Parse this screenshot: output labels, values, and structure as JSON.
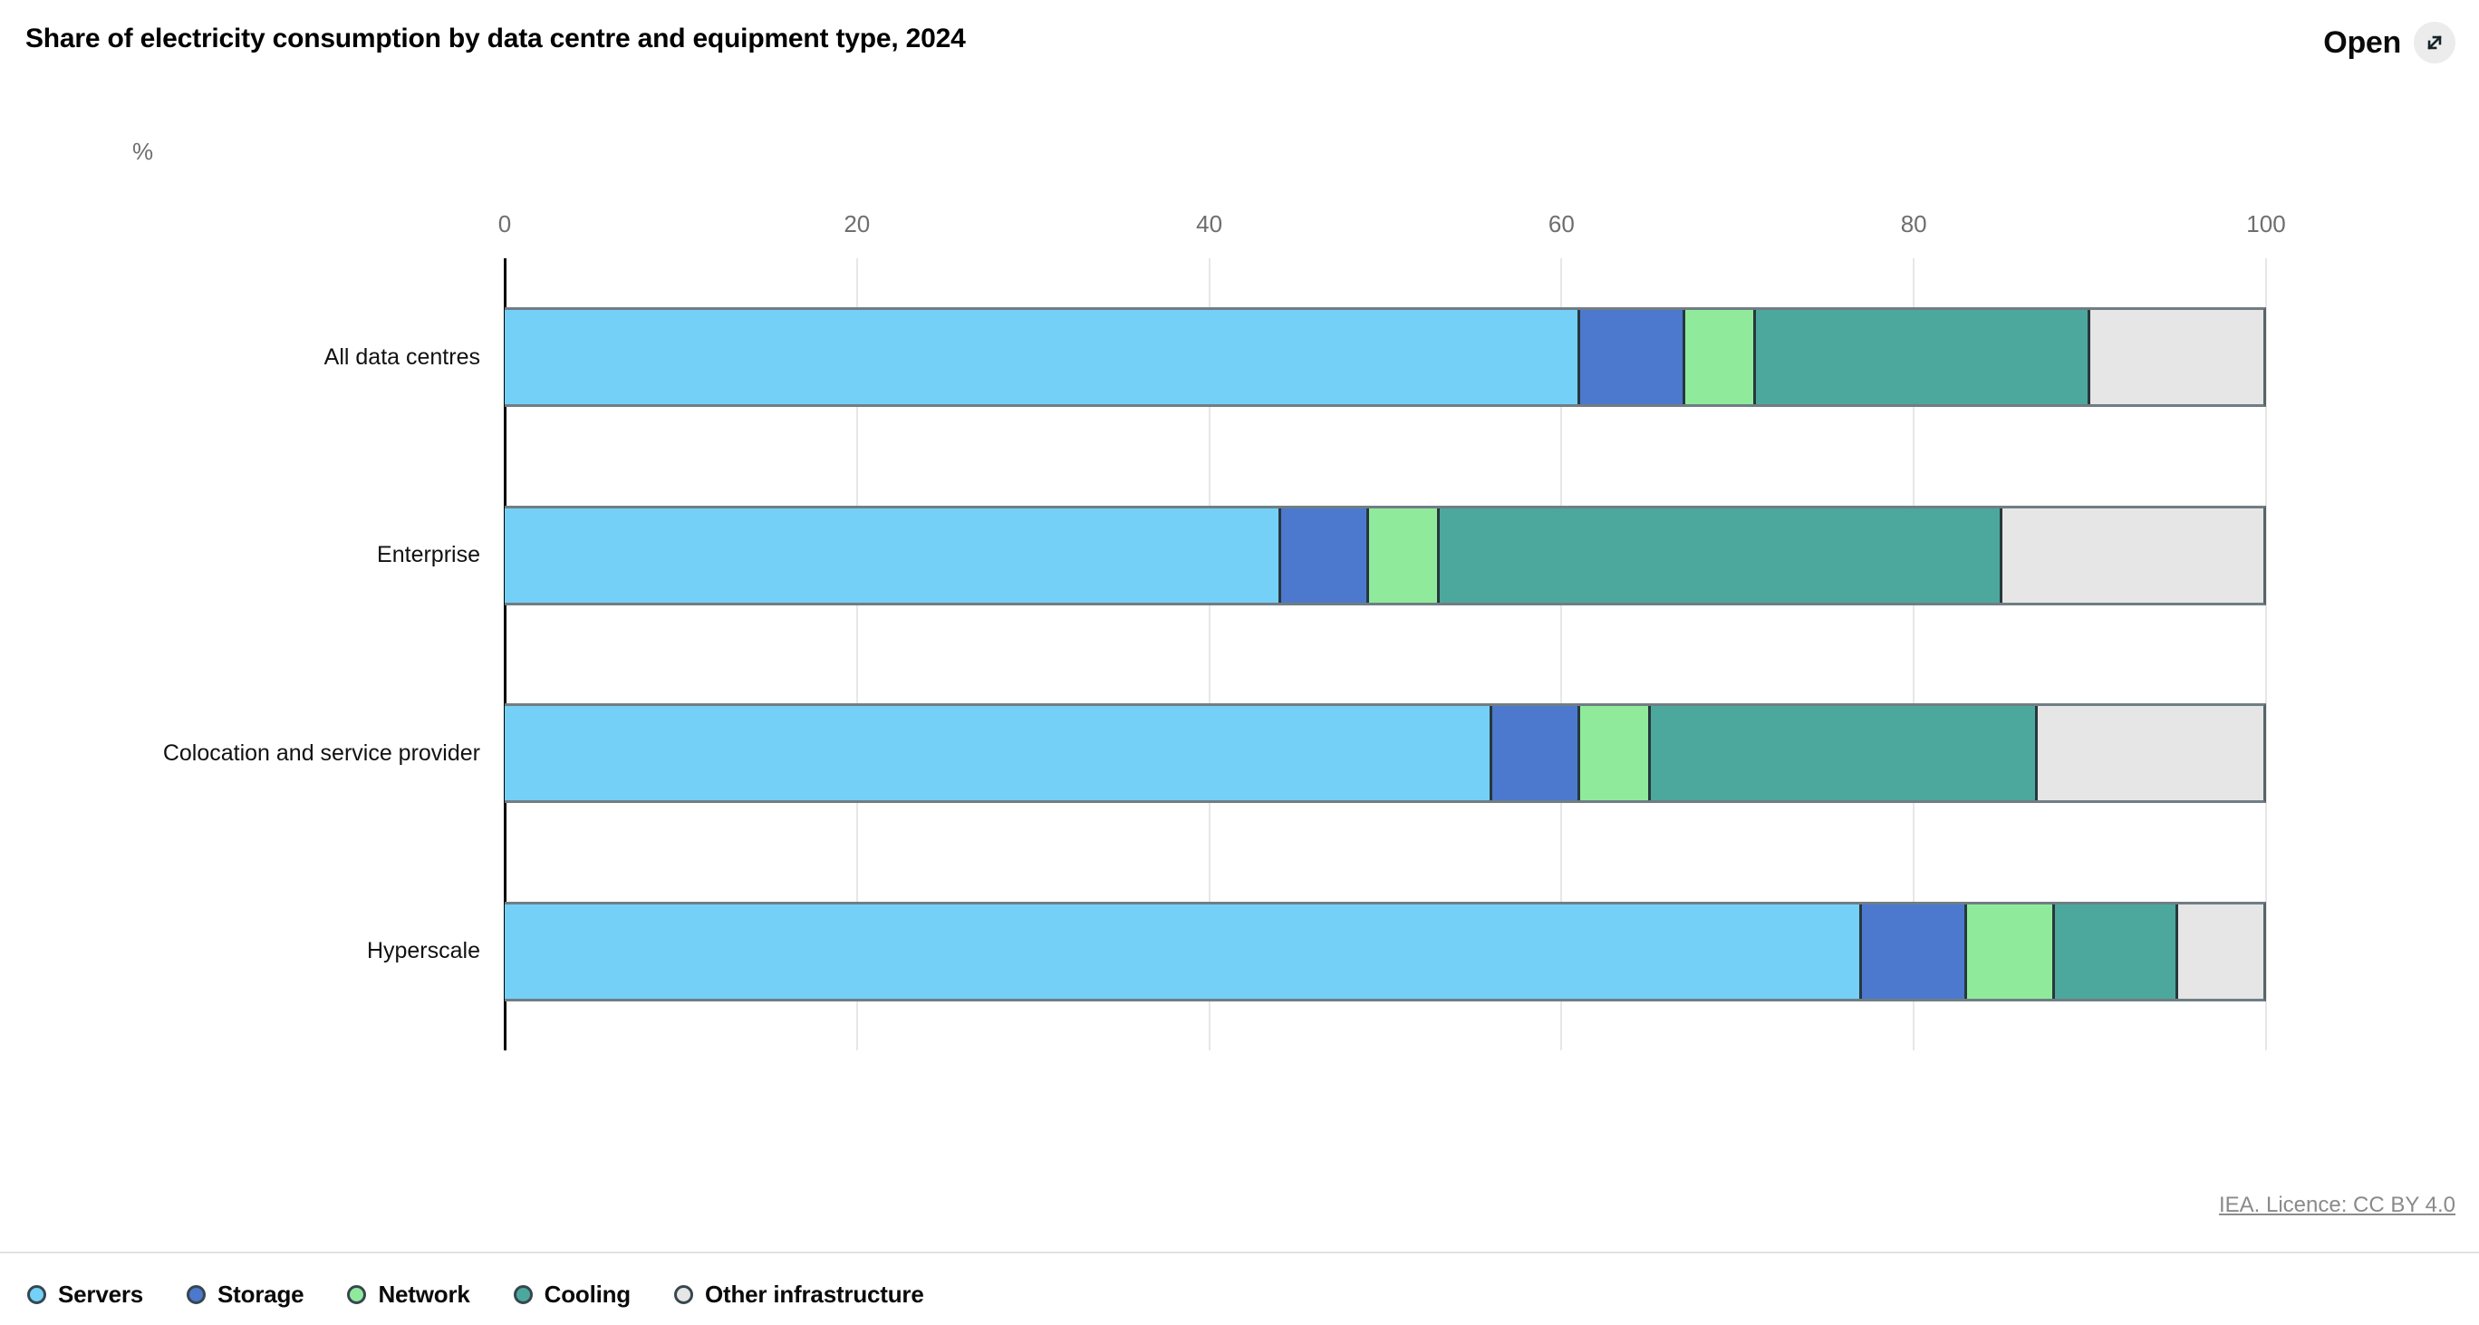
{
  "header": {
    "title": "Share of electricity consumption by data centre and equipment type, 2024",
    "open_label": "Open"
  },
  "footer": {
    "licence": "IEA. Licence: CC BY 4.0"
  },
  "chart_data": {
    "type": "bar",
    "orientation": "horizontal-stacked",
    "title": "Share of electricity consumption by data centre and equipment type, 2024",
    "unit_label": "%",
    "xlabel": "",
    "ylabel": "",
    "xlim": [
      0,
      100
    ],
    "xticks": [
      0,
      20,
      40,
      60,
      80,
      100
    ],
    "grid": true,
    "legend_position": "bottom",
    "categories": [
      "All data centres",
      "Enterprise",
      "Colocation and service provider",
      "Hyperscale"
    ],
    "series": [
      {
        "name": "Servers",
        "color": "#74D0F6",
        "values": [
          61,
          44,
          56,
          77
        ]
      },
      {
        "name": "Storage",
        "color": "#4C79CD",
        "values": [
          6,
          5,
          5,
          6
        ]
      },
      {
        "name": "Network",
        "color": "#8FEB9B",
        "values": [
          4,
          4,
          4,
          5
        ]
      },
      {
        "name": "Cooling",
        "color": "#4CA89C",
        "values": [
          19,
          32,
          22,
          7
        ]
      },
      {
        "name": "Other infrastructure",
        "color": "#E6E6E6",
        "values": [
          10,
          15,
          13,
          5
        ]
      }
    ]
  },
  "colors": {
    "axis_line": "#000000",
    "gridline": "#e7e7e7",
    "tick_label": "#6e6e6e",
    "bar_outline": "#707d84",
    "segment_divider": "#28373d",
    "legend_outline": "#37474f",
    "open_button_bg": "#ececec"
  }
}
